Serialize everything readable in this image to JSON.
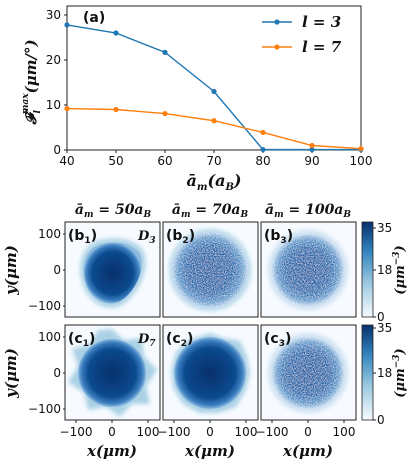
{
  "chart_data": [
    {
      "type": "line",
      "panel_label": "(a)",
      "xlabel": "ā_m(a_B)",
      "ylabel": "F_l^max(μm/°)",
      "x": [
        40,
        50,
        60,
        70,
        80,
        90,
        100
      ],
      "xlim": [
        40,
        100
      ],
      "ylim": [
        0,
        32
      ],
      "xticks": [
        "40",
        "50",
        "60",
        "70",
        "80",
        "90",
        "100"
      ],
      "yticks": [
        "0",
        "10",
        "20",
        "30"
      ],
      "legend_position": "top-right",
      "series": [
        {
          "name": "l = 3",
          "color": "#1f77b4",
          "values": [
            27.8,
            26.0,
            21.7,
            13.0,
            0.1,
            0.1,
            0.1
          ]
        },
        {
          "name": "l = 7",
          "color": "#ff7f0e",
          "values": [
            9.2,
            9.0,
            8.1,
            6.5,
            3.9,
            1.0,
            0.3
          ]
        }
      ]
    },
    {
      "type": "heatmap",
      "column_titles": [
        "ā_m = 50a_B",
        "ā_m = 70a_B",
        "ā_m = 100a_B"
      ],
      "xlabel": "x(μm)",
      "ylabel": "y(μm)",
      "xticks": [
        "−100",
        "0",
        "100"
      ],
      "yticks": [
        "100",
        "0",
        "−100"
      ],
      "colorbar_label": "(μm⁻³)",
      "colorbar_ticks": [
        "35",
        "18",
        "0"
      ],
      "colormap": "Blues",
      "rows": [
        {
          "panels": [
            "(b₁)",
            "(b₂)",
            "(b₃)"
          ],
          "symmetry": "D₃"
        },
        {
          "panels": [
            "(c₁)",
            "(c₂)",
            "(c₃)"
          ],
          "symmetry": "D₇"
        }
      ]
    }
  ]
}
